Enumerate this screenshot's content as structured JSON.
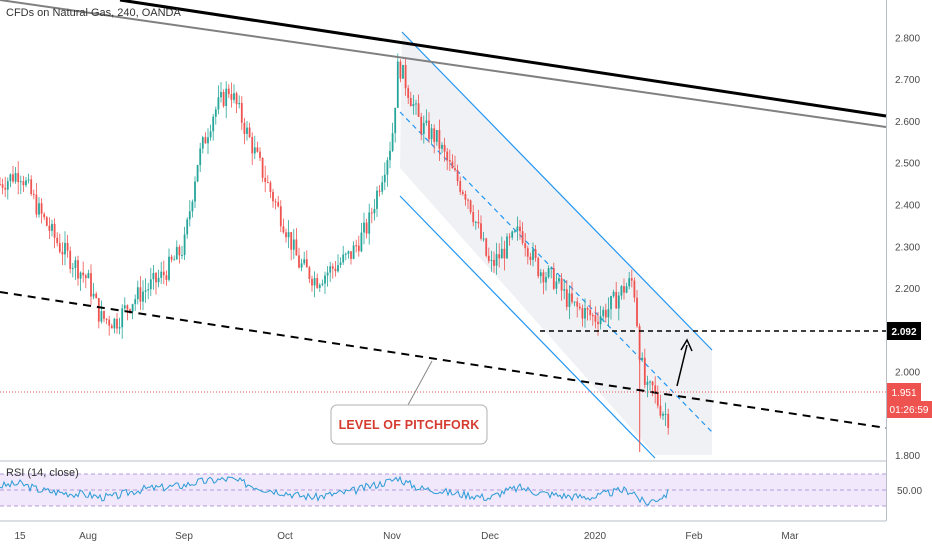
{
  "chart_title": "CFDs on Natural Gas, 240, OANDA",
  "chart_data": [
    {
      "type": "line",
      "title": "CFDs on Natural Gas, 240, OANDA",
      "price_axis_labels": [
        "2.800",
        "2.700",
        "2.600",
        "2.500",
        "2.400",
        "2.300",
        "2.200",
        "2.000",
        "1.800"
      ],
      "time_axis_labels": [
        "15",
        "Aug",
        "Sep",
        "Oct",
        "Nov",
        "Dec",
        "2020",
        "Feb",
        "Mar"
      ],
      "ylim": [
        1.8,
        2.84
      ],
      "x": [
        "Jul 11",
        "Jul 15",
        "Jul 20",
        "Jul 25",
        "Aug 1",
        "Aug 5",
        "Aug 10",
        "Aug 15",
        "Aug 20",
        "Aug 25",
        "Sep 1",
        "Sep 5",
        "Sep 10",
        "Sep 15",
        "Sep 20",
        "Sep 25",
        "Oct 1",
        "Oct 5",
        "Oct 10",
        "Oct 15",
        "Oct 20",
        "Oct 25",
        "Nov 1",
        "Nov 3",
        "Nov 5",
        "Nov 10",
        "Nov 15",
        "Nov 20",
        "Nov 25",
        "Dec 1",
        "Dec 5",
        "Dec 10",
        "Dec 15",
        "Dec 20",
        "Dec 25",
        "Jan 1",
        "Jan 5",
        "Jan 10",
        "Jan 13",
        "Jan 15",
        "Jan 17",
        "Jan 19",
        "Jan 21",
        "Jan 23",
        "Jan 24"
      ],
      "series": [
        {
          "values": [
            2.45,
            2.48,
            2.38,
            2.3,
            2.22,
            2.13,
            2.12,
            2.17,
            2.2,
            2.23,
            2.3,
            2.5,
            2.62,
            2.68,
            2.58,
            2.48,
            2.35,
            2.26,
            2.22,
            2.25,
            2.28,
            2.35,
            2.56,
            2.74,
            2.7,
            2.59,
            2.56,
            2.48,
            2.42,
            2.25,
            2.29,
            2.34,
            2.25,
            2.22,
            2.16,
            2.13,
            2.15,
            2.2,
            2.22,
            2.05,
            1.95,
            1.96,
            1.92,
            1.9,
            1.89
          ]
        }
      ],
      "current_price": "1.951",
      "countdown": "01:26:59",
      "marked_level": "2.092",
      "annotation": "LEVEL OF PITCHFORK",
      "indicator": {
        "title": "RSI (14, close)",
        "axis_label": "50.00",
        "values": [
          55,
          58,
          50,
          47,
          44,
          41,
          42,
          48,
          52,
          53,
          56,
          60,
          62,
          64,
          58,
          52,
          47,
          43,
          41,
          45,
          48,
          54,
          62,
          66,
          60,
          52,
          50,
          46,
          44,
          40,
          48,
          53,
          47,
          44,
          42,
          41,
          46,
          50,
          48,
          38,
          33,
          37,
          40,
          44,
          47
        ]
      }
    }
  ]
}
